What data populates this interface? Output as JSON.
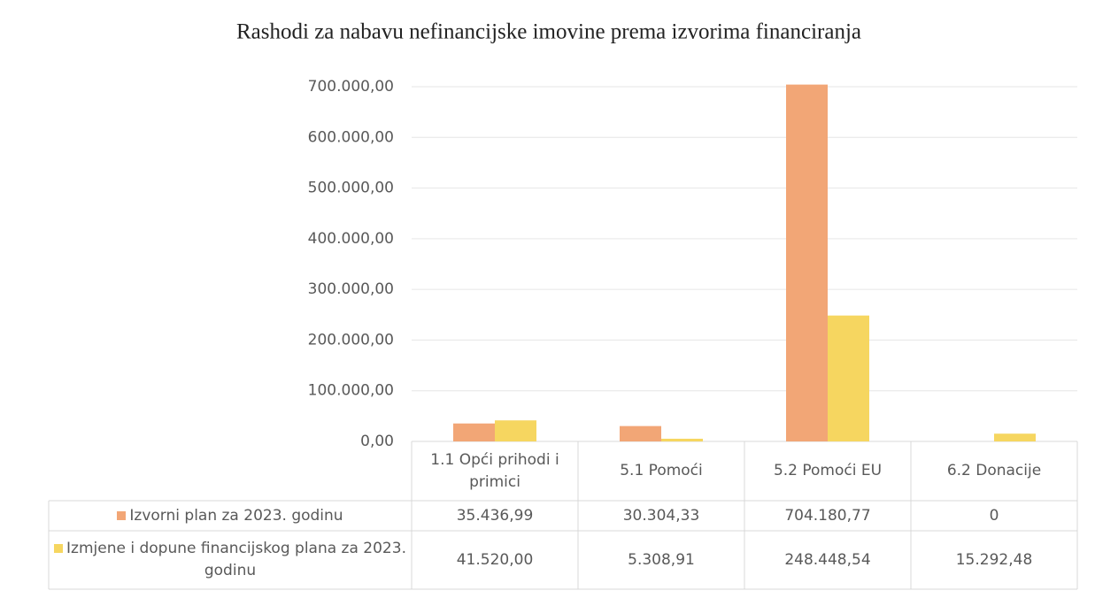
{
  "chart_data": {
    "type": "bar",
    "title": "Rashodi za nabavu nefinancijske imovine prema izvorima financiranja",
    "categories": [
      "1.1 Opći prihodi i primici",
      "5.1 Pomoći",
      "5.2 Pomoći EU",
      "6.2 Donacije"
    ],
    "series": [
      {
        "name": "Izvorni plan za 2023. godinu",
        "color": "#f2a676",
        "values": [
          35436.99,
          30304.33,
          704180.77,
          0
        ],
        "value_labels": [
          "35.436,99",
          "30.304,33",
          "704.180,77",
          "0"
        ]
      },
      {
        "name": "Izmjene i dopune financijskog plana za 2023. godinu",
        "color": "#f6d660",
        "values": [
          41520.0,
          5308.91,
          248448.54,
          15292.48
        ],
        "value_labels": [
          "41.520,00",
          "5.308,91",
          "248.448,54",
          "15.292,48"
        ]
      }
    ],
    "ylim": [
      0,
      700000
    ],
    "yticks": [
      {
        "value": 0,
        "label": "0,00"
      },
      {
        "value": 100000,
        "label": "100.000,00"
      },
      {
        "value": 200000,
        "label": "200.000,00"
      },
      {
        "value": 300000,
        "label": "300.000,00"
      },
      {
        "value": 400000,
        "label": "400.000,00"
      },
      {
        "value": 500000,
        "label": "500.000,00"
      },
      {
        "value": 600000,
        "label": "600.000,00"
      },
      {
        "value": 700000,
        "label": "700.000,00"
      }
    ],
    "grid": true
  }
}
